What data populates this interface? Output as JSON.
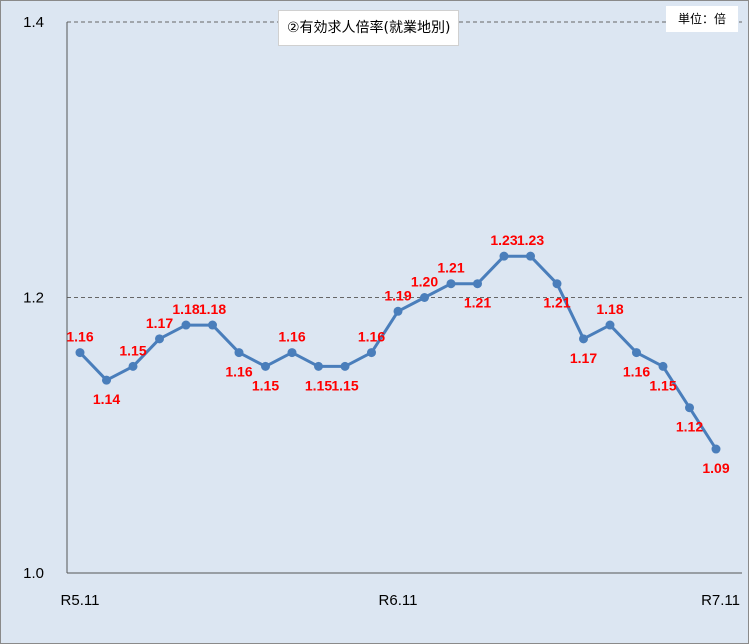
{
  "chart_data": {
    "type": "line",
    "title": "②有効求人倍率(就業地別)",
    "unit_label": "単位：倍",
    "xlabel": "",
    "ylabel": "",
    "ylim": [
      1.0,
      1.4
    ],
    "y_ticks": [
      "1.0",
      "1.2",
      "1.4"
    ],
    "x_tick_labels": [
      "R5.11",
      "R6.11",
      "R7.11"
    ],
    "x_tick_indices": [
      0,
      12,
      24
    ],
    "grid": "dashed horizontal at 1.2 and 1.4",
    "legend": "none",
    "series": [
      {
        "color": "#4a7ebb",
        "values": [
          1.16,
          1.14,
          1.15,
          1.17,
          1.18,
          1.18,
          1.16,
          1.15,
          1.16,
          1.15,
          1.15,
          1.16,
          1.19,
          1.2,
          1.21,
          1.21,
          1.23,
          1.23,
          1.21,
          1.17,
          1.18,
          1.16,
          1.15,
          1.12,
          1.09
        ],
        "labels": [
          "1.16",
          "1.14",
          "1.15",
          "1.17",
          "1.18",
          "1.18",
          "1.16",
          "1.15",
          "1.16",
          "1.15",
          "1.15",
          "1.16",
          "1.19",
          "1.20",
          "1.21",
          "1.21",
          "1.23",
          "1.23",
          "1.21",
          "1.17",
          "1.18",
          "1.16",
          "1.15",
          "1.12",
          "1.09"
        ]
      }
    ],
    "label_color": "#ff0000"
  }
}
